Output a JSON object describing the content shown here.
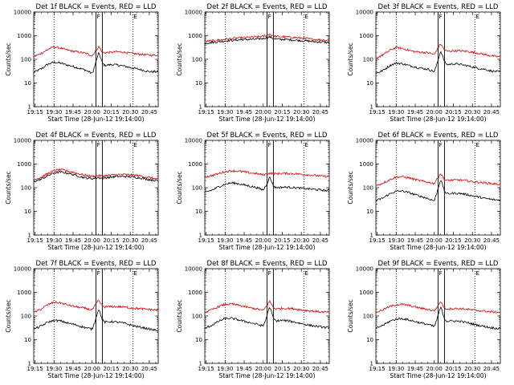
{
  "chart_data": {
    "type": "line",
    "x_tick_labels": [
      "19:15",
      "19:30",
      "19:45",
      "20:00",
      "20:15",
      "20:30",
      "20:45"
    ],
    "y_tick_labels": [
      "1",
      "10",
      "100",
      "1000",
      "10000"
    ],
    "xlabel": "Start Time (28-Jun-12 19:14:00)",
    "ylabel": "Counts/sec",
    "y_scale": "log",
    "ylim": [
      1,
      10000
    ],
    "xlim": [
      "19:14",
      "20:52"
    ],
    "time_markers": {
      "dotted": [
        "19:30",
        "20:32"
      ],
      "solid": [
        "20:03",
        "20:08"
      ],
      "marker_letters": [
        "F",
        "E"
      ],
      "marker_letter_times": [
        "20:03",
        "20:32"
      ]
    },
    "sample_times": [
      "19:14",
      "19:20",
      "19:25",
      "19:30",
      "19:35",
      "19:40",
      "19:45",
      "19:50",
      "19:55",
      "20:00",
      "20:02",
      "20:04",
      "20:05",
      "20:06",
      "20:08",
      "20:10",
      "20:15",
      "20:20",
      "20:25",
      "20:30",
      "20:35",
      "20:40",
      "20:45",
      "20:50",
      "20:52"
    ],
    "panels": [
      {
        "title": "Det 1f BLACK = Events, RED = LLD",
        "series": [
          {
            "color": "#000000",
            "values": [
              28,
              40,
              62,
              75,
              70,
              58,
              50,
              42,
              35,
              25,
              50,
              120,
              180,
              150,
              70,
              55,
              60,
              58,
              52,
              45,
              40,
              35,
              30,
              30,
              30
            ]
          },
          {
            "color": "#e00000",
            "values": [
              130,
              180,
              260,
              340,
              300,
              250,
              220,
              200,
              180,
              140,
              200,
              280,
              350,
              300,
              200,
              190,
              200,
              210,
              200,
              180,
              170,
              160,
              150,
              150,
              150
            ]
          }
        ]
      },
      {
        "title": "Det 2f BLACK = Events, RED = LLD",
        "series": [
          {
            "color": "#000000",
            "values": [
              480,
              520,
              560,
              600,
              630,
              660,
              690,
              700,
              720,
              760,
              800,
              860,
              900,
              850,
              760,
              720,
              700,
              680,
              650,
              620,
              600,
              560,
              540,
              520,
              520
            ]
          },
          {
            "color": "#e00000",
            "values": [
              560,
              610,
              660,
              710,
              750,
              790,
              830,
              860,
              890,
              950,
              1000,
              1100,
              1200,
              1100,
              980,
              930,
              900,
              870,
              830,
              790,
              750,
              700,
              670,
              640,
              640
            ]
          }
        ]
      },
      {
        "title": "Det 3f BLACK = Events, RED = LLD",
        "series": [
          {
            "color": "#000000",
            "values": [
              25,
              35,
              55,
              70,
              65,
              55,
              48,
              42,
              38,
              30,
              60,
              150,
              220,
              170,
              80,
              60,
              65,
              62,
              55,
              48,
              42,
              38,
              32,
              30,
              30
            ]
          },
          {
            "color": "#e00000",
            "values": [
              110,
              160,
              240,
              320,
              290,
              240,
              210,
              200,
              190,
              160,
              250,
              380,
              450,
              380,
              250,
              220,
              230,
              230,
              220,
              200,
              180,
              160,
              140,
              130,
              130
            ]
          }
        ]
      },
      {
        "title": "Det 4f BLACK = Events, RED = LLD",
        "series": [
          {
            "color": "#000000",
            "values": [
              180,
              230,
              320,
              420,
              460,
              420,
              360,
              300,
              260,
              240,
              250,
              260,
              270,
              260,
              250,
              260,
              280,
              300,
              300,
              290,
              270,
              250,
              220,
              200,
              200
            ]
          },
          {
            "color": "#e00000",
            "values": [
              220,
              280,
              390,
              520,
              580,
              520,
              450,
              380,
              330,
              300,
              310,
              320,
              330,
              320,
              310,
              320,
              340,
              360,
              360,
              350,
              330,
              300,
              270,
              240,
              240
            ]
          }
        ]
      },
      {
        "title": "Det 5f BLACK = Events, RED = LLD",
        "series": [
          {
            "color": "#000000",
            "values": [
              65,
              80,
              110,
              140,
              160,
              150,
              130,
              115,
              100,
              80,
              120,
              200,
              280,
              220,
              120,
              100,
              105,
              105,
              100,
              95,
              90,
              85,
              80,
              75,
              75
            ]
          },
          {
            "color": "#e00000",
            "values": [
              280,
              330,
              400,
              470,
              520,
              500,
              460,
              420,
              390,
              350,
              370,
              400,
              410,
              400,
              390,
              390,
              400,
              400,
              390,
              370,
              350,
              330,
              310,
              300,
              300
            ]
          }
        ]
      },
      {
        "title": "Det 6f BLACK = Events, RED = LLD",
        "series": [
          {
            "color": "#000000",
            "values": [
              28,
              38,
              55,
              70,
              72,
              62,
              50,
              42,
              35,
              28,
              60,
              150,
              220,
              160,
              70,
              55,
              58,
              58,
              52,
              46,
              40,
              35,
              32,
              30,
              30
            ]
          },
          {
            "color": "#e00000",
            "values": [
              120,
              160,
              220,
              280,
              290,
              260,
              220,
              190,
              170,
              150,
              220,
              330,
              400,
              330,
              220,
              200,
              210,
              210,
              200,
              180,
              170,
              160,
              150,
              140,
              140
            ]
          }
        ]
      },
      {
        "title": "Det 7f BLACK = Events, RED = LLD",
        "series": [
          {
            "color": "#000000",
            "values": [
              28,
              38,
              55,
              65,
              62,
              52,
              45,
              38,
              32,
              28,
              55,
              130,
              200,
              150,
              70,
              55,
              58,
              55,
              50,
              42,
              36,
              32,
              28,
              25,
              25
            ]
          },
          {
            "color": "#e00000",
            "values": [
              140,
              200,
              300,
              380,
              360,
              300,
              260,
              230,
              210,
              180,
              260,
              380,
              450,
              380,
              270,
              240,
              250,
              250,
              240,
              220,
              210,
              200,
              190,
              180,
              180
            ]
          }
        ]
      },
      {
        "title": "Det 8f BLACK = Events, RED = LLD",
        "series": [
          {
            "color": "#000000",
            "values": [
              30,
              42,
              60,
              78,
              80,
              70,
              60,
              52,
              45,
              38,
              70,
              170,
              240,
              180,
              80,
              62,
              65,
              62,
              55,
              48,
              42,
              38,
              35,
              32,
              32
            ]
          },
          {
            "color": "#e00000",
            "values": [
              140,
              190,
              250,
              310,
              320,
              290,
              250,
              220,
              200,
              170,
              240,
              350,
              420,
              350,
              230,
              200,
              210,
              210,
              200,
              180,
              170,
              160,
              150,
              145,
              145
            ]
          }
        ]
      },
      {
        "title": "Det 9f BLACK = Events, RED = LLD",
        "series": [
          {
            "color": "#000000",
            "values": [
              30,
              42,
              60,
              75,
              78,
              68,
              58,
              50,
              44,
              36,
              70,
              160,
              240,
              170,
              78,
              60,
              62,
              60,
              54,
              46,
              40,
              36,
              32,
              30,
              30
            ]
          },
          {
            "color": "#e00000",
            "values": [
              140,
              190,
              250,
              300,
              310,
              280,
              240,
              210,
              190,
              165,
              230,
              340,
              420,
              340,
              220,
              200,
              205,
              205,
              195,
              180,
              170,
              160,
              150,
              145,
              145
            ]
          }
        ]
      }
    ]
  }
}
